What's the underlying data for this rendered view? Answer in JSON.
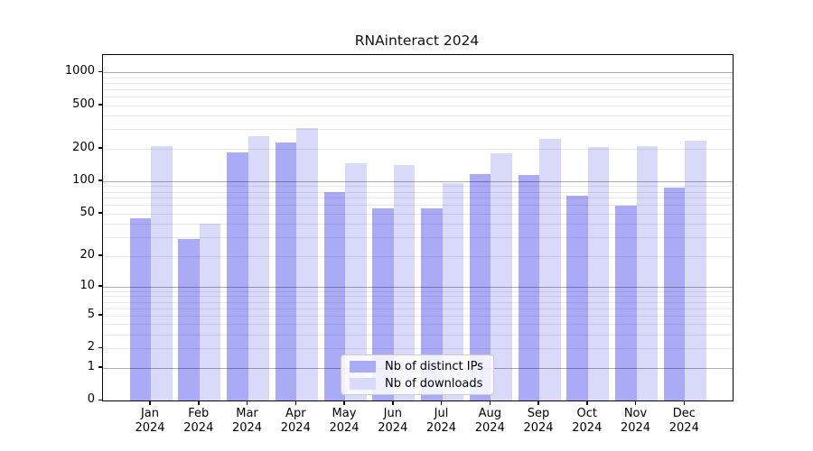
{
  "title": "RNAinteract 2024",
  "chart_data": {
    "type": "bar",
    "title": "RNAinteract 2024",
    "categories": [
      "Jan",
      "Feb",
      "Mar",
      "Apr",
      "May",
      "Jun",
      "Jul",
      "Aug",
      "Sep",
      "Oct",
      "Nov",
      "Dec"
    ],
    "x_year_label": "2024",
    "series": [
      {
        "name": "Nb of distinct IPs",
        "color": "#aaaaf6",
        "values": [
          45,
          29,
          185,
          228,
          80,
          56,
          56,
          116,
          115,
          74,
          59,
          87
        ]
      },
      {
        "name": "Nb of downloads",
        "color": "#d9d9fa",
        "values": [
          210,
          40,
          258,
          310,
          146,
          140,
          96,
          180,
          247,
          206,
          212,
          235
        ]
      }
    ],
    "yscale": "log10(value+1)",
    "yticks": [
      0,
      1,
      2,
      5,
      10,
      20,
      50,
      100,
      200,
      500,
      1000
    ],
    "ylim": [
      0,
      1450
    ],
    "grid": {
      "orientation": "horizontal",
      "major_at": [
        1,
        10,
        100,
        1000
      ],
      "minor": "2-9 of each decade",
      "drawn_over_bars": true
    },
    "legend_position": "lower-center"
  },
  "colors": {
    "background": "#ffffff",
    "axis": "#000000",
    "major_grid": "rgba(0,0,0,0.32)",
    "minor_grid": "rgba(0,0,0,0.085)"
  }
}
